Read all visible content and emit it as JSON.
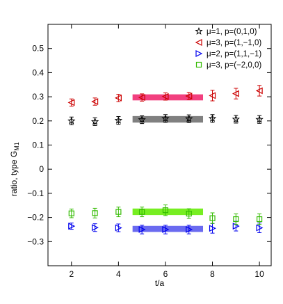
{
  "chart_data": {
    "type": "scatter",
    "xlabel": "t/a",
    "ylabel_main": "ratio, type G",
    "ylabel_sub": "M1",
    "xlim": [
      1,
      10.5
    ],
    "ylim": [
      -0.4,
      0.6
    ],
    "xticks": [
      2,
      4,
      6,
      8,
      10
    ],
    "yticks": [
      -0.3,
      -0.2,
      -0.1,
      0,
      0.1,
      0.2,
      0.3,
      0.4,
      0.5
    ],
    "ytick_labels": [
      "−0.3",
      "−0.2",
      "−0.1",
      "0",
      "0.1",
      "0.2",
      "0.3",
      "0.4",
      "0.5"
    ],
    "legend_position": "top-right",
    "series": [
      {
        "name": "μ=1, p=(0,1,0)",
        "marker": "star",
        "color": "#000000",
        "band_color": "#808080",
        "band": {
          "x": [
            4.6,
            7.6
          ],
          "y": [
            0.193,
            0.22
          ]
        },
        "x": [
          2,
          3,
          4,
          5,
          6,
          7,
          8,
          9,
          10
        ],
        "y": [
          0.2,
          0.197,
          0.202,
          0.205,
          0.21,
          0.209,
          0.21,
          0.207,
          0.206
        ],
        "err": [
          0.016,
          0.016,
          0.016,
          0.016,
          0.016,
          0.016,
          0.016,
          0.016,
          0.016
        ]
      },
      {
        "name": "μ=3, p=(1,−1,0)",
        "marker": "triangle-left",
        "color": "#cc0000",
        "band_color": "#f2407f",
        "band": {
          "x": [
            4.6,
            7.6
          ],
          "y": [
            0.285,
            0.31
          ]
        },
        "x": [
          2,
          3,
          4,
          5,
          6,
          7,
          8,
          9,
          10
        ],
        "y": [
          0.276,
          0.28,
          0.295,
          0.297,
          0.301,
          0.303,
          0.305,
          0.313,
          0.325
        ],
        "err": [
          0.015,
          0.015,
          0.015,
          0.015,
          0.015,
          0.015,
          0.022,
          0.022,
          0.022
        ]
      },
      {
        "name": "μ=2, p=(1,1,−1)",
        "marker": "triangle-right",
        "color": "#0000ee",
        "band_color": "#6a6af0",
        "band": {
          "x": [
            4.6,
            7.6
          ],
          "y": [
            -0.26,
            -0.235
          ]
        },
        "x": [
          2,
          3,
          4,
          5,
          6,
          7,
          8,
          9,
          10
        ],
        "y": [
          -0.236,
          -0.242,
          -0.243,
          -0.25,
          -0.25,
          -0.25,
          -0.245,
          -0.236,
          -0.243
        ],
        "err": [
          0.013,
          0.016,
          0.016,
          0.018,
          0.018,
          0.018,
          0.02,
          0.02,
          0.02
        ]
      },
      {
        "name": "μ=3, p=(−2,0,0)",
        "marker": "square",
        "color": "#33bb00",
        "band_color": "#77ee22",
        "band": {
          "x": [
            4.6,
            7.6
          ],
          "y": [
            -0.19,
            -0.163
          ]
        },
        "x": [
          2,
          3,
          4,
          5,
          6,
          7,
          8,
          9,
          10
        ],
        "y": [
          -0.183,
          -0.182,
          -0.177,
          -0.177,
          -0.17,
          -0.184,
          -0.203,
          -0.207,
          -0.207
        ],
        "err": [
          0.018,
          0.02,
          0.02,
          0.02,
          0.022,
          0.02,
          0.022,
          0.022,
          0.022
        ]
      }
    ]
  }
}
